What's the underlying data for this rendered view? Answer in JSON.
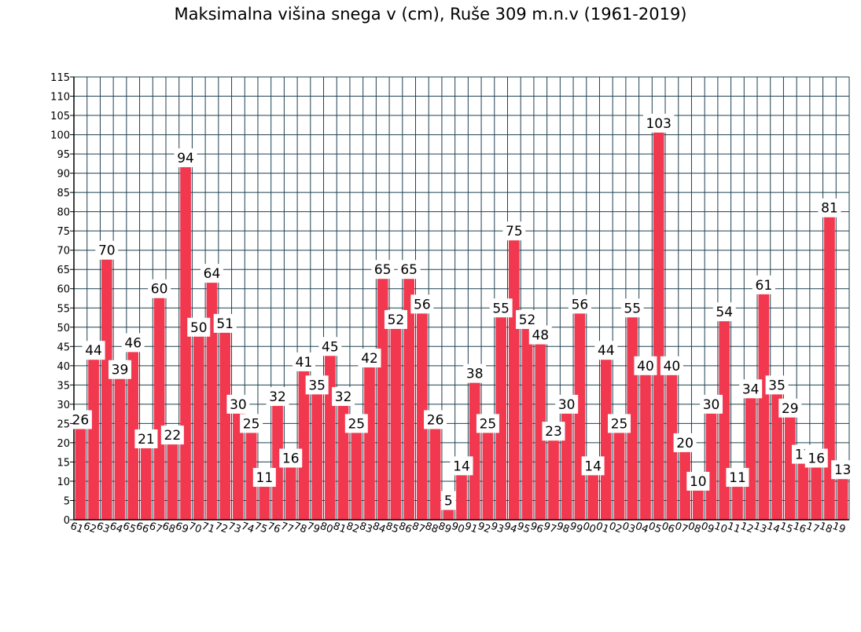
{
  "chart_data": {
    "type": "bar",
    "title": "Maksimalna višina snega v (cm), Ruše 309 m.n.v (1961-2019)",
    "xlabel": "",
    "ylabel": "",
    "ylim": [
      0,
      115
    ],
    "y_ticks": [
      0,
      5,
      10,
      15,
      20,
      25,
      30,
      35,
      40,
      45,
      50,
      55,
      60,
      65,
      70,
      75,
      80,
      85,
      90,
      95,
      100,
      105,
      110,
      115
    ],
    "grid": true,
    "legend": "none",
    "bar_color": "#f2384f",
    "grid_color": "#1f4050",
    "categories": [
      "61",
      "62",
      "63",
      "64",
      "65",
      "66",
      "67",
      "68",
      "69",
      "70",
      "71",
      "72",
      "73",
      "74",
      "75",
      "76",
      "77",
      "78",
      "79",
      "80",
      "81",
      "82",
      "83",
      "84",
      "85",
      "86",
      "87",
      "88",
      "89",
      "90",
      "91",
      "92",
      "93",
      "94",
      "95",
      "96",
      "97",
      "98",
      "99",
      "00",
      "01",
      "02",
      "03",
      "04",
      "05",
      "06",
      "07",
      "08",
      "09",
      "10",
      "11",
      "12",
      "13",
      "14",
      "15",
      "16",
      "17",
      "18",
      "19"
    ],
    "values": [
      26,
      44,
      70,
      39,
      46,
      21,
      60,
      22,
      94,
      50,
      64,
      51,
      30,
      25,
      11,
      32,
      16,
      41,
      35,
      45,
      32,
      25,
      42,
      65,
      52,
      65,
      56,
      26,
      5,
      14,
      38,
      25,
      55,
      75,
      52,
      48,
      23,
      30,
      56,
      14,
      44,
      25,
      55,
      40,
      103,
      40,
      20,
      10,
      30,
      54,
      11,
      34,
      61,
      35,
      29,
      17,
      16,
      81,
      13
    ]
  }
}
